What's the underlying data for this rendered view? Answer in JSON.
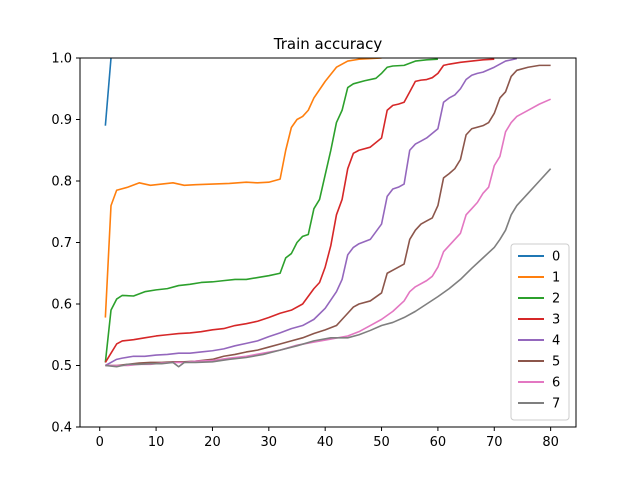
{
  "chart_data": {
    "type": "line",
    "title": "Train accuracy",
    "xlabel": "",
    "ylabel": "",
    "xlim": [
      -3.5,
      84.5
    ],
    "ylim": [
      0.4,
      1.0
    ],
    "xticks": [
      0,
      10,
      20,
      30,
      40,
      50,
      60,
      70,
      80
    ],
    "yticks": [
      0.4,
      0.5,
      0.6,
      0.7,
      0.8,
      0.9,
      1.0
    ],
    "xtick_labels": [
      "0",
      "10",
      "20",
      "30",
      "40",
      "50",
      "60",
      "70",
      "80"
    ],
    "ytick_labels": [
      "0.4",
      "0.5",
      "0.6",
      "0.7",
      "0.8",
      "0.9",
      "1.0"
    ],
    "grid": false,
    "legend_position": "lower-right",
    "series": [
      {
        "name": "0",
        "color": "#1f77b4",
        "x": [
          1,
          2
        ],
        "y": [
          0.89,
          1.0
        ]
      },
      {
        "name": "1",
        "color": "#ff7f0e",
        "x": [
          1,
          2,
          3,
          5,
          7,
          9,
          11,
          13,
          15,
          17,
          20,
          23,
          26,
          28,
          30,
          32,
          33,
          34,
          35,
          36,
          37,
          38,
          40,
          42,
          44,
          46,
          48,
          50
        ],
        "y": [
          0.578,
          0.76,
          0.785,
          0.79,
          0.797,
          0.793,
          0.795,
          0.797,
          0.793,
          0.794,
          0.795,
          0.796,
          0.798,
          0.797,
          0.798,
          0.803,
          0.85,
          0.887,
          0.9,
          0.905,
          0.915,
          0.935,
          0.962,
          0.985,
          0.995,
          0.998,
          0.999,
          1.0
        ]
      },
      {
        "name": "2",
        "color": "#2ca02c",
        "x": [
          1,
          2,
          3,
          4,
          6,
          8,
          10,
          12,
          14,
          16,
          18,
          20,
          22,
          24,
          26,
          28,
          30,
          32,
          33,
          34,
          35,
          36,
          37,
          38,
          39,
          40,
          41,
          42,
          43,
          44,
          45,
          47,
          49,
          50,
          51,
          52,
          54,
          56,
          58,
          60
        ],
        "y": [
          0.505,
          0.59,
          0.608,
          0.614,
          0.613,
          0.62,
          0.623,
          0.625,
          0.63,
          0.632,
          0.635,
          0.636,
          0.638,
          0.64,
          0.64,
          0.643,
          0.646,
          0.65,
          0.675,
          0.682,
          0.7,
          0.71,
          0.713,
          0.755,
          0.77,
          0.81,
          0.85,
          0.895,
          0.915,
          0.952,
          0.958,
          0.963,
          0.967,
          0.975,
          0.985,
          0.987,
          0.988,
          0.995,
          0.997,
          0.998
        ]
      },
      {
        "name": "3",
        "color": "#d62728",
        "x": [
          1,
          2,
          3,
          4,
          6,
          8,
          10,
          12,
          14,
          16,
          18,
          20,
          22,
          24,
          26,
          28,
          30,
          32,
          34,
          36,
          38,
          39,
          40,
          41,
          42,
          43,
          44,
          45,
          46,
          48,
          50,
          51,
          52,
          53,
          54,
          55,
          56,
          57,
          58,
          59,
          60,
          61,
          62,
          64,
          66,
          68,
          70
        ],
        "y": [
          0.505,
          0.52,
          0.535,
          0.54,
          0.542,
          0.545,
          0.548,
          0.55,
          0.552,
          0.553,
          0.555,
          0.558,
          0.56,
          0.565,
          0.568,
          0.572,
          0.578,
          0.585,
          0.59,
          0.6,
          0.625,
          0.635,
          0.66,
          0.695,
          0.745,
          0.77,
          0.82,
          0.845,
          0.85,
          0.855,
          0.87,
          0.915,
          0.923,
          0.925,
          0.928,
          0.945,
          0.962,
          0.964,
          0.965,
          0.968,
          0.975,
          0.988,
          0.99,
          0.993,
          0.995,
          0.997,
          0.998
        ]
      },
      {
        "name": "4",
        "color": "#9467bd",
        "x": [
          1,
          2,
          3,
          4,
          6,
          8,
          10,
          12,
          14,
          16,
          18,
          20,
          22,
          24,
          26,
          28,
          30,
          32,
          34,
          36,
          38,
          40,
          42,
          43,
          44,
          45,
          46,
          48,
          50,
          51,
          52,
          53,
          54,
          55,
          56,
          57,
          58,
          60,
          61,
          62,
          63,
          64,
          65,
          66,
          67,
          68,
          70,
          72,
          74
        ],
        "y": [
          0.5,
          0.505,
          0.51,
          0.512,
          0.515,
          0.515,
          0.517,
          0.518,
          0.52,
          0.52,
          0.522,
          0.524,
          0.527,
          0.532,
          0.536,
          0.54,
          0.547,
          0.553,
          0.56,
          0.565,
          0.575,
          0.593,
          0.62,
          0.64,
          0.68,
          0.692,
          0.698,
          0.705,
          0.73,
          0.775,
          0.787,
          0.79,
          0.795,
          0.85,
          0.86,
          0.865,
          0.87,
          0.885,
          0.928,
          0.935,
          0.94,
          0.95,
          0.965,
          0.972,
          0.975,
          0.977,
          0.985,
          0.995,
          0.999
        ]
      },
      {
        "name": "5",
        "color": "#8c564b",
        "x": [
          1,
          3,
          5,
          7,
          9,
          11,
          13,
          15,
          17,
          20,
          22,
          24,
          26,
          28,
          30,
          32,
          34,
          36,
          38,
          40,
          42,
          43,
          44,
          45,
          46,
          48,
          50,
          51,
          52,
          54,
          55,
          56,
          57,
          58,
          59,
          60,
          61,
          62,
          63,
          64,
          65,
          66,
          68,
          69,
          70,
          71,
          72,
          73,
          74,
          76,
          78,
          80
        ],
        "y": [
          0.5,
          0.5,
          0.502,
          0.504,
          0.505,
          0.505,
          0.506,
          0.506,
          0.507,
          0.51,
          0.515,
          0.518,
          0.522,
          0.525,
          0.53,
          0.535,
          0.54,
          0.545,
          0.552,
          0.558,
          0.565,
          0.575,
          0.585,
          0.595,
          0.6,
          0.605,
          0.618,
          0.65,
          0.655,
          0.665,
          0.705,
          0.72,
          0.73,
          0.735,
          0.74,
          0.76,
          0.805,
          0.812,
          0.82,
          0.835,
          0.875,
          0.885,
          0.89,
          0.895,
          0.91,
          0.935,
          0.945,
          0.97,
          0.98,
          0.985,
          0.988,
          0.988
        ]
      },
      {
        "name": "6",
        "color": "#e377c2",
        "x": [
          1,
          3,
          5,
          7,
          9,
          11,
          13,
          15,
          17,
          20,
          23,
          26,
          29,
          32,
          35,
          38,
          41,
          44,
          46,
          48,
          50,
          52,
          54,
          55,
          56,
          58,
          59,
          60,
          61,
          62,
          64,
          65,
          66,
          67,
          68,
          69,
          70,
          71,
          72,
          73,
          74,
          76,
          78,
          80
        ],
        "y": [
          0.5,
          0.5,
          0.5,
          0.502,
          0.502,
          0.504,
          0.505,
          0.505,
          0.507,
          0.508,
          0.512,
          0.515,
          0.52,
          0.525,
          0.533,
          0.538,
          0.543,
          0.548,
          0.555,
          0.565,
          0.575,
          0.588,
          0.605,
          0.62,
          0.628,
          0.638,
          0.645,
          0.66,
          0.685,
          0.695,
          0.715,
          0.745,
          0.755,
          0.765,
          0.78,
          0.79,
          0.825,
          0.84,
          0.88,
          0.895,
          0.905,
          0.915,
          0.925,
          0.933
        ]
      },
      {
        "name": "7",
        "color": "#7f7f7f",
        "x": [
          1,
          3,
          5,
          7,
          9,
          11,
          13,
          14,
          15,
          17,
          20,
          23,
          26,
          29,
          32,
          35,
          38,
          41,
          44,
          46,
          48,
          50,
          52,
          54,
          56,
          58,
          60,
          62,
          64,
          66,
          68,
          70,
          71,
          72,
          73,
          74,
          76,
          78,
          80
        ],
        "y": [
          0.5,
          0.498,
          0.502,
          0.502,
          0.503,
          0.503,
          0.505,
          0.498,
          0.505,
          0.505,
          0.506,
          0.51,
          0.513,
          0.518,
          0.525,
          0.532,
          0.54,
          0.545,
          0.545,
          0.55,
          0.557,
          0.565,
          0.57,
          0.578,
          0.588,
          0.6,
          0.612,
          0.625,
          0.64,
          0.658,
          0.675,
          0.692,
          0.705,
          0.72,
          0.745,
          0.76,
          0.78,
          0.8,
          0.82
        ]
      }
    ]
  }
}
